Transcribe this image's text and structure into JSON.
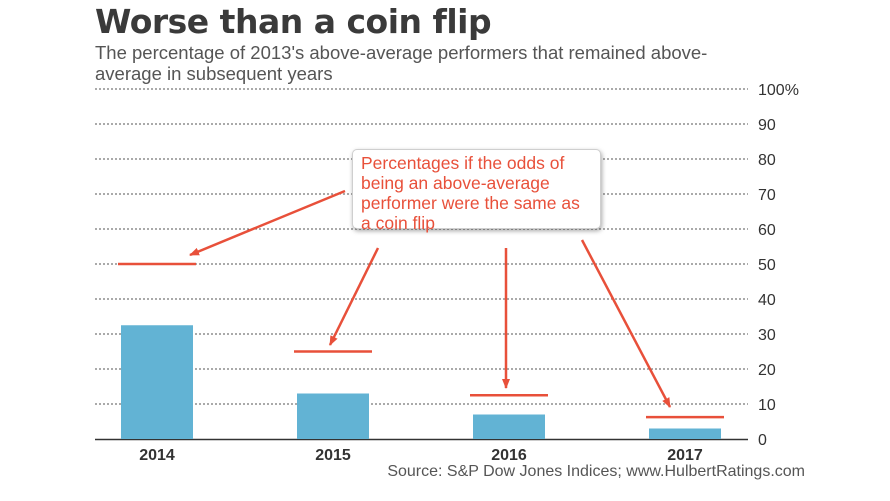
{
  "title": "Worse than a coin flip",
  "subtitle": "The percentage of 2013's above-average performers that remained above-average in subsequent years",
  "annotation": "Percentages if the odds of being an above-average performer were the same as a coin flip",
  "source": "Source: S&P Dow Jones Indices; www.HulbertRatings.com",
  "colors": {
    "bar": "#62b3d4",
    "reference": "#e8503a",
    "grid": "#555555",
    "axis": "#333333"
  },
  "chart_data": {
    "type": "bar",
    "categories": [
      "2014",
      "2015",
      "2016",
      "2017"
    ],
    "values": [
      32.5,
      13,
      7,
      3
    ],
    "reference_values": [
      50,
      25,
      12.5,
      6.25
    ],
    "ylim": [
      0,
      100
    ],
    "yticks": [
      "0",
      "10",
      "20",
      "30",
      "40",
      "50",
      "60",
      "70",
      "80",
      "90",
      "100%"
    ],
    "ytick_values": [
      0,
      10,
      20,
      30,
      40,
      50,
      60,
      70,
      80,
      90,
      100
    ],
    "grid": true,
    "yaxis_position": "right",
    "xlabel": "",
    "ylabel": ""
  }
}
